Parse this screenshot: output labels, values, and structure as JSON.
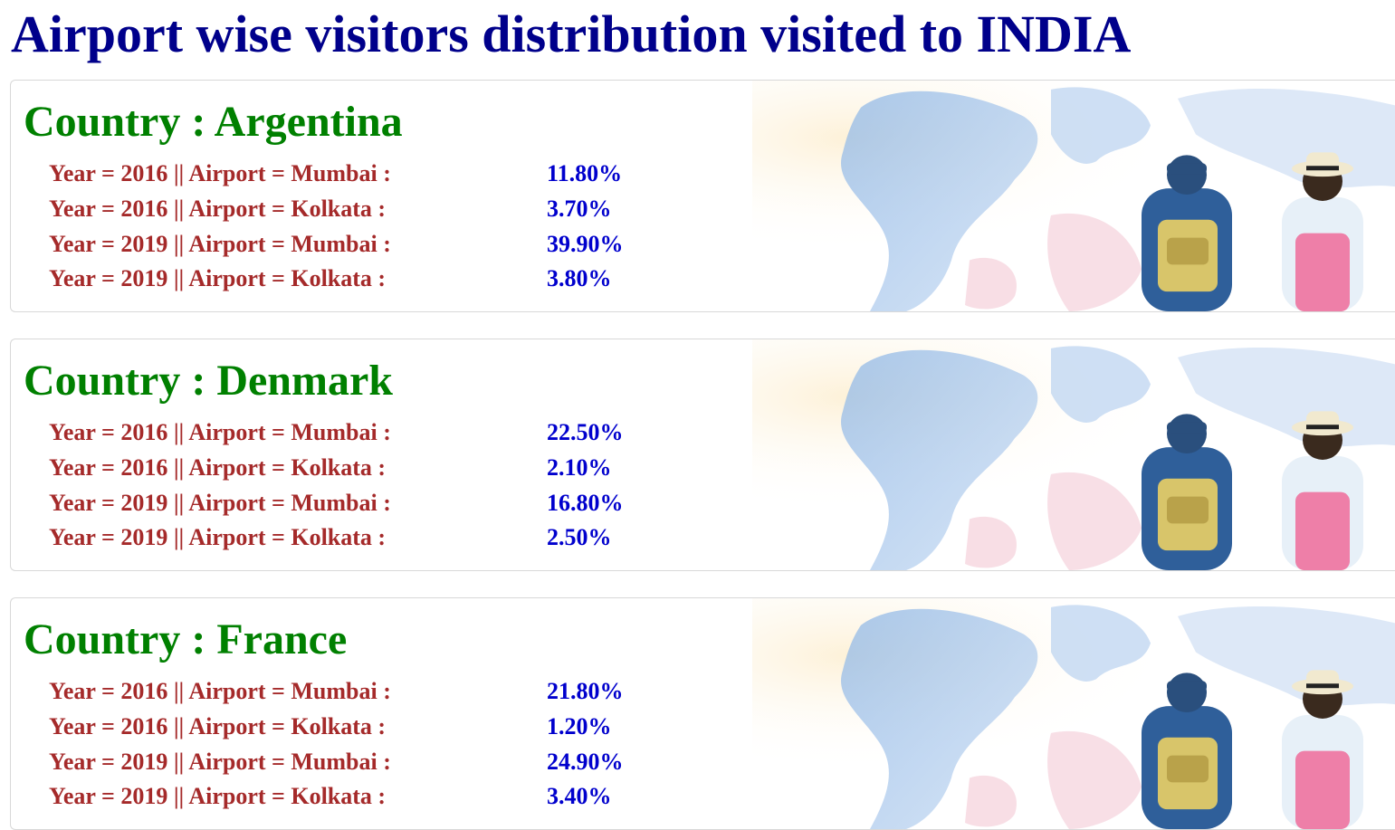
{
  "page": {
    "title": "Airport wise visitors distribution visited to INDIA"
  },
  "colors": {
    "title": "#00008b",
    "country": "#008000",
    "label": "#a52a2a",
    "value": "#0000cd"
  },
  "countries": [
    {
      "heading": "Country : Argentina",
      "rows": [
        {
          "label": "Year = 2016 || Airport = Mumbai :",
          "value": "11.80%"
        },
        {
          "label": "Year = 2016 || Airport = Kolkata :",
          "value": "3.70%"
        },
        {
          "label": "Year = 2019 || Airport = Mumbai :",
          "value": "39.90%"
        },
        {
          "label": "Year = 2019 || Airport = Kolkata :",
          "value": "3.80%"
        }
      ]
    },
    {
      "heading": "Country : Denmark",
      "rows": [
        {
          "label": "Year = 2016 || Airport = Mumbai :",
          "value": "22.50%"
        },
        {
          "label": "Year = 2016 || Airport = Kolkata :",
          "value": "2.10%"
        },
        {
          "label": "Year = 2019 || Airport = Mumbai :",
          "value": "16.80%"
        },
        {
          "label": "Year = 2019 || Airport = Kolkata :",
          "value": "2.50%"
        }
      ]
    },
    {
      "heading": "Country : France",
      "rows": [
        {
          "label": "Year = 2016 || Airport = Mumbai :",
          "value": "21.80%"
        },
        {
          "label": "Year = 2016 || Airport = Kolkata :",
          "value": "1.20%"
        },
        {
          "label": "Year = 2019 || Airport = Mumbai :",
          "value": "24.90%"
        },
        {
          "label": "Year = 2019 || Airport = Kolkata :",
          "value": "3.40%"
        }
      ]
    }
  ],
  "decor": {
    "background_image": "world-map-travelers-illustration"
  }
}
